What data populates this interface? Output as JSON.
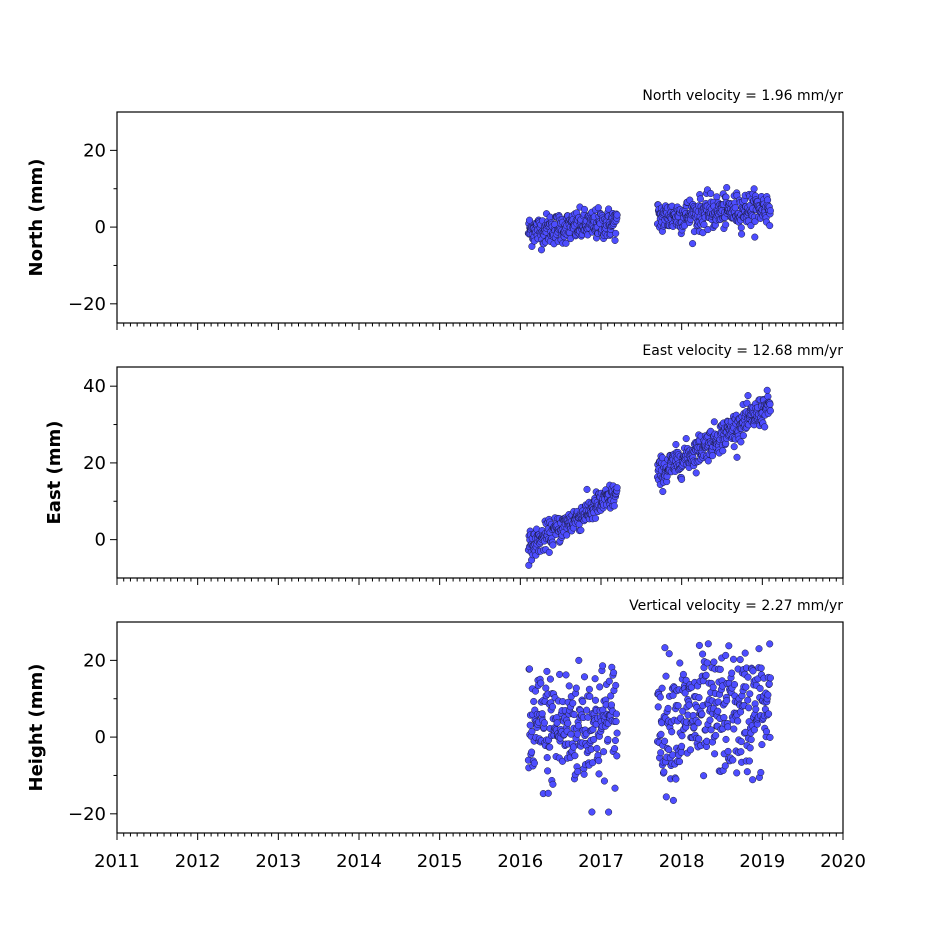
{
  "chart_data": [
    {
      "type": "scatter",
      "title": "North velocity = 1.96 mm/yr",
      "ylabel": "North (mm)",
      "xlim": [
        2011,
        2020
      ],
      "ylim": [
        -25,
        30
      ],
      "yticks": [
        -20,
        0,
        20
      ],
      "ytick_labels": [
        "−20",
        "0",
        "20"
      ],
      "velocity_mm_per_yr": 1.96,
      "series": [
        {
          "segments": [
            {
              "x_range": [
                2016.1,
                2017.2
              ],
              "start_value": -1.0,
              "noise": 2.0
            },
            {
              "x_range": [
                2017.7,
                2019.1
              ],
              "start_value": 2.5,
              "noise": 2.2
            }
          ]
        }
      ]
    },
    {
      "type": "scatter",
      "title": "East velocity = 12.68 mm/yr",
      "ylabel": "East (mm)",
      "xlim": [
        2011,
        2020
      ],
      "ylim": [
        -10,
        45
      ],
      "yticks": [
        0,
        20,
        40
      ],
      "ytick_labels": [
        "0",
        "20",
        "40"
      ],
      "velocity_mm_per_yr": 12.68,
      "series": [
        {
          "segments": [
            {
              "x_range": [
                2016.1,
                2017.2
              ],
              "start_value": -2.0,
              "noise": 1.8
            },
            {
              "x_range": [
                2017.7,
                2019.1
              ],
              "start_value": 17.0,
              "noise": 2.0
            }
          ]
        }
      ]
    },
    {
      "type": "scatter",
      "title": "Vertical velocity = 2.27 mm/yr",
      "ylabel": "Height (mm)",
      "xlim": [
        2011,
        2020
      ],
      "ylim": [
        -25,
        30
      ],
      "yticks": [
        -20,
        0,
        20
      ],
      "ytick_labels": [
        "−20",
        "0",
        "20"
      ],
      "velocity_mm_per_yr": 2.27,
      "series": [
        {
          "segments": [
            {
              "x_range": [
                2016.1,
                2017.2
              ],
              "start_value": 1.5,
              "noise": 8.0
            },
            {
              "x_range": [
                2017.7,
                2019.1
              ],
              "start_value": 4.0,
              "noise": 8.0
            }
          ]
        }
      ]
    }
  ],
  "xticks": [
    2011,
    2012,
    2013,
    2014,
    2015,
    2016,
    2017,
    2018,
    2019,
    2020
  ],
  "xtick_labels": [
    "2011",
    "2012",
    "2013",
    "2014",
    "2015",
    "2016",
    "2017",
    "2018",
    "2019",
    "2020"
  ],
  "point_color": "#4d4dff"
}
